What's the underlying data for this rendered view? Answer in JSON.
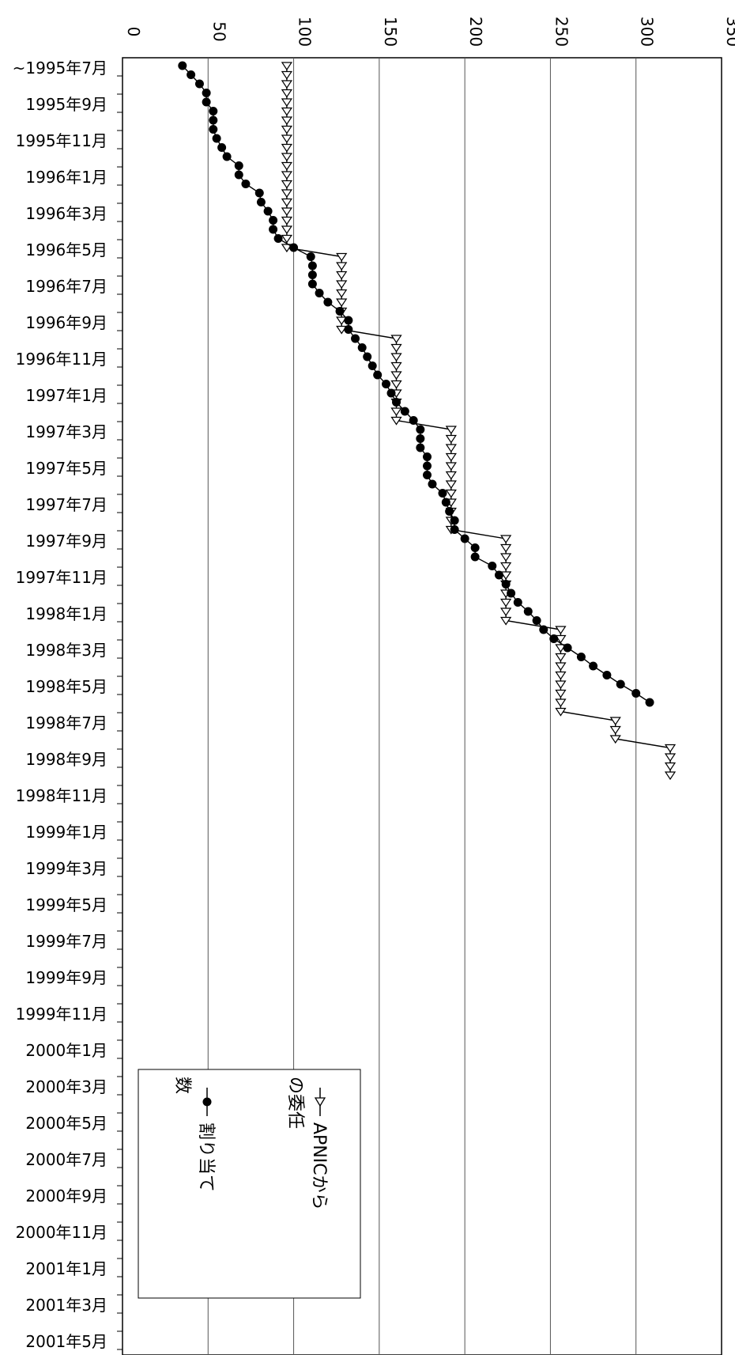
{
  "chart_data": {
    "type": "line",
    "orientation": "rotated-90-clockwise",
    "value_axis": {
      "min": 0,
      "max": 350,
      "step": 50,
      "ticks": [
        "0",
        "50",
        "100",
        "150",
        "200",
        "250",
        "300",
        "350"
      ]
    },
    "grid": true,
    "category_labels": [
      "~1995年7月",
      "1995年9月",
      "1995年11月",
      "1996年1月",
      "1996年3月",
      "1996年5月",
      "1996年7月",
      "1996年9月",
      "1996年11月",
      "1997年1月",
      "1997年3月",
      "1997年5月",
      "1997年7月",
      "1997年9月",
      "1997年11月",
      "1998年1月",
      "1998年3月",
      "1998年5月",
      "1998年7月",
      "1998年9月",
      "1998年11月",
      "1999年1月",
      "1999年3月",
      "1999年5月",
      "1999年7月",
      "1999年9月",
      "1999年11月",
      "2000年1月",
      "2000年3月",
      "2000年5月",
      "2000年7月",
      "2000年9月",
      "2000年11月",
      "2001年1月",
      "2001年3月",
      "2001年5月"
    ],
    "series": [
      {
        "name": "APNICからの委任",
        "marker": "open-triangle",
        "values": [
          96,
          96,
          96,
          96,
          96,
          96,
          96,
          96,
          96,
          96,
          96,
          96,
          96,
          96,
          96,
          96,
          96,
          96,
          96,
          96,
          96,
          128,
          128,
          128,
          128,
          128,
          128,
          128,
          128,
          128,
          160,
          160,
          160,
          160,
          160,
          160,
          160,
          160,
          160,
          160,
          192,
          192,
          192,
          192,
          192,
          192,
          192,
          192,
          192,
          192,
          192,
          192,
          224,
          224,
          224,
          224,
          224,
          224,
          224,
          224,
          224,
          224,
          256,
          256,
          256,
          256,
          256,
          256,
          256,
          256,
          256,
          256,
          288,
          288,
          288,
          320,
          320,
          320,
          320
        ]
      },
      {
        "name": "割り当て数",
        "marker": "filled-circle",
        "values": [
          35,
          40,
          45,
          49,
          49,
          53,
          53,
          53,
          55,
          58,
          61,
          68,
          68,
          72,
          80,
          81,
          85,
          88,
          88,
          91,
          100,
          110,
          111,
          111,
          111,
          115,
          120,
          127,
          132,
          132,
          136,
          140,
          143,
          146,
          149,
          154,
          157,
          160,
          165,
          170,
          174,
          174,
          174,
          178,
          178,
          178,
          181,
          187,
          189,
          191,
          194,
          194,
          200,
          206,
          206,
          216,
          220,
          224,
          227,
          231,
          237,
          242,
          246,
          252,
          260,
          268,
          275,
          283,
          291,
          300,
          308
        ]
      }
    ]
  },
  "legend": {
    "series1": [
      "APNICから",
      "の委任"
    ],
    "series2": [
      "割り当て",
      "数"
    ]
  }
}
